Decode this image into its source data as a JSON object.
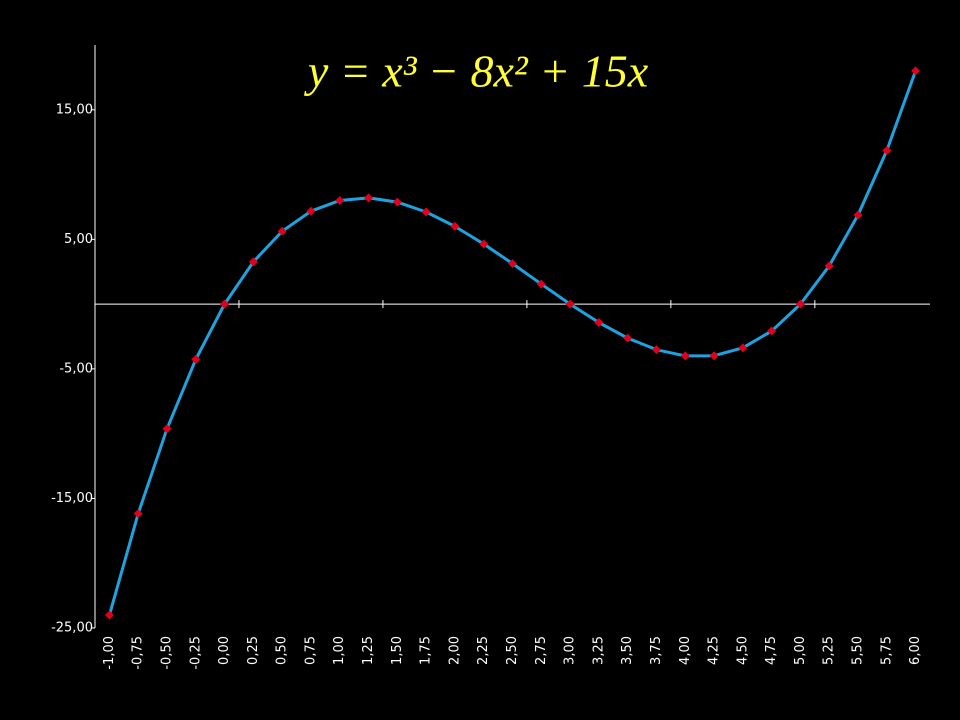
{
  "chart_data": {
    "type": "line",
    "title": "y = x³ − 8x² + 15x",
    "categories": [
      "-1,00",
      "-0,75",
      "-0,50",
      "-0,25",
      "0,00",
      "0,25",
      "0,50",
      "0,75",
      "1,00",
      "1,25",
      "1,50",
      "1,75",
      "2,00",
      "2,25",
      "2,50",
      "2,75",
      "3,00",
      "3,25",
      "3,50",
      "3,75",
      "4,00",
      "4,25",
      "4,50",
      "4,75",
      "5,00",
      "5,25",
      "5,50",
      "5,75",
      "6,00"
    ],
    "series": [
      {
        "color": "#1ea3e0",
        "marker_color": "#e0001b",
        "values": [
          -24,
          -16.171875,
          -9.625,
          -4.265625,
          0,
          3.265625,
          5.625,
          7.171875,
          8,
          8.203125,
          7.875,
          7.109375,
          6,
          4.640625,
          3.125,
          1.546875,
          0,
          -1.421875,
          -2.625,
          -3.515625,
          -4,
          -3.984375,
          -3.375,
          -2.078125,
          0,
          2.953125,
          6.875,
          11.859375,
          18
        ]
      }
    ],
    "ylim": [
      -25,
      20
    ],
    "yticks": [
      {
        "value": -25,
        "label": "-25,00"
      },
      {
        "value": -15,
        "label": "-15,00"
      },
      {
        "value": -5,
        "label": "-5,00"
      },
      {
        "value": 5,
        "label": "5,00"
      },
      {
        "value": 15,
        "label": "15,00"
      }
    ]
  }
}
